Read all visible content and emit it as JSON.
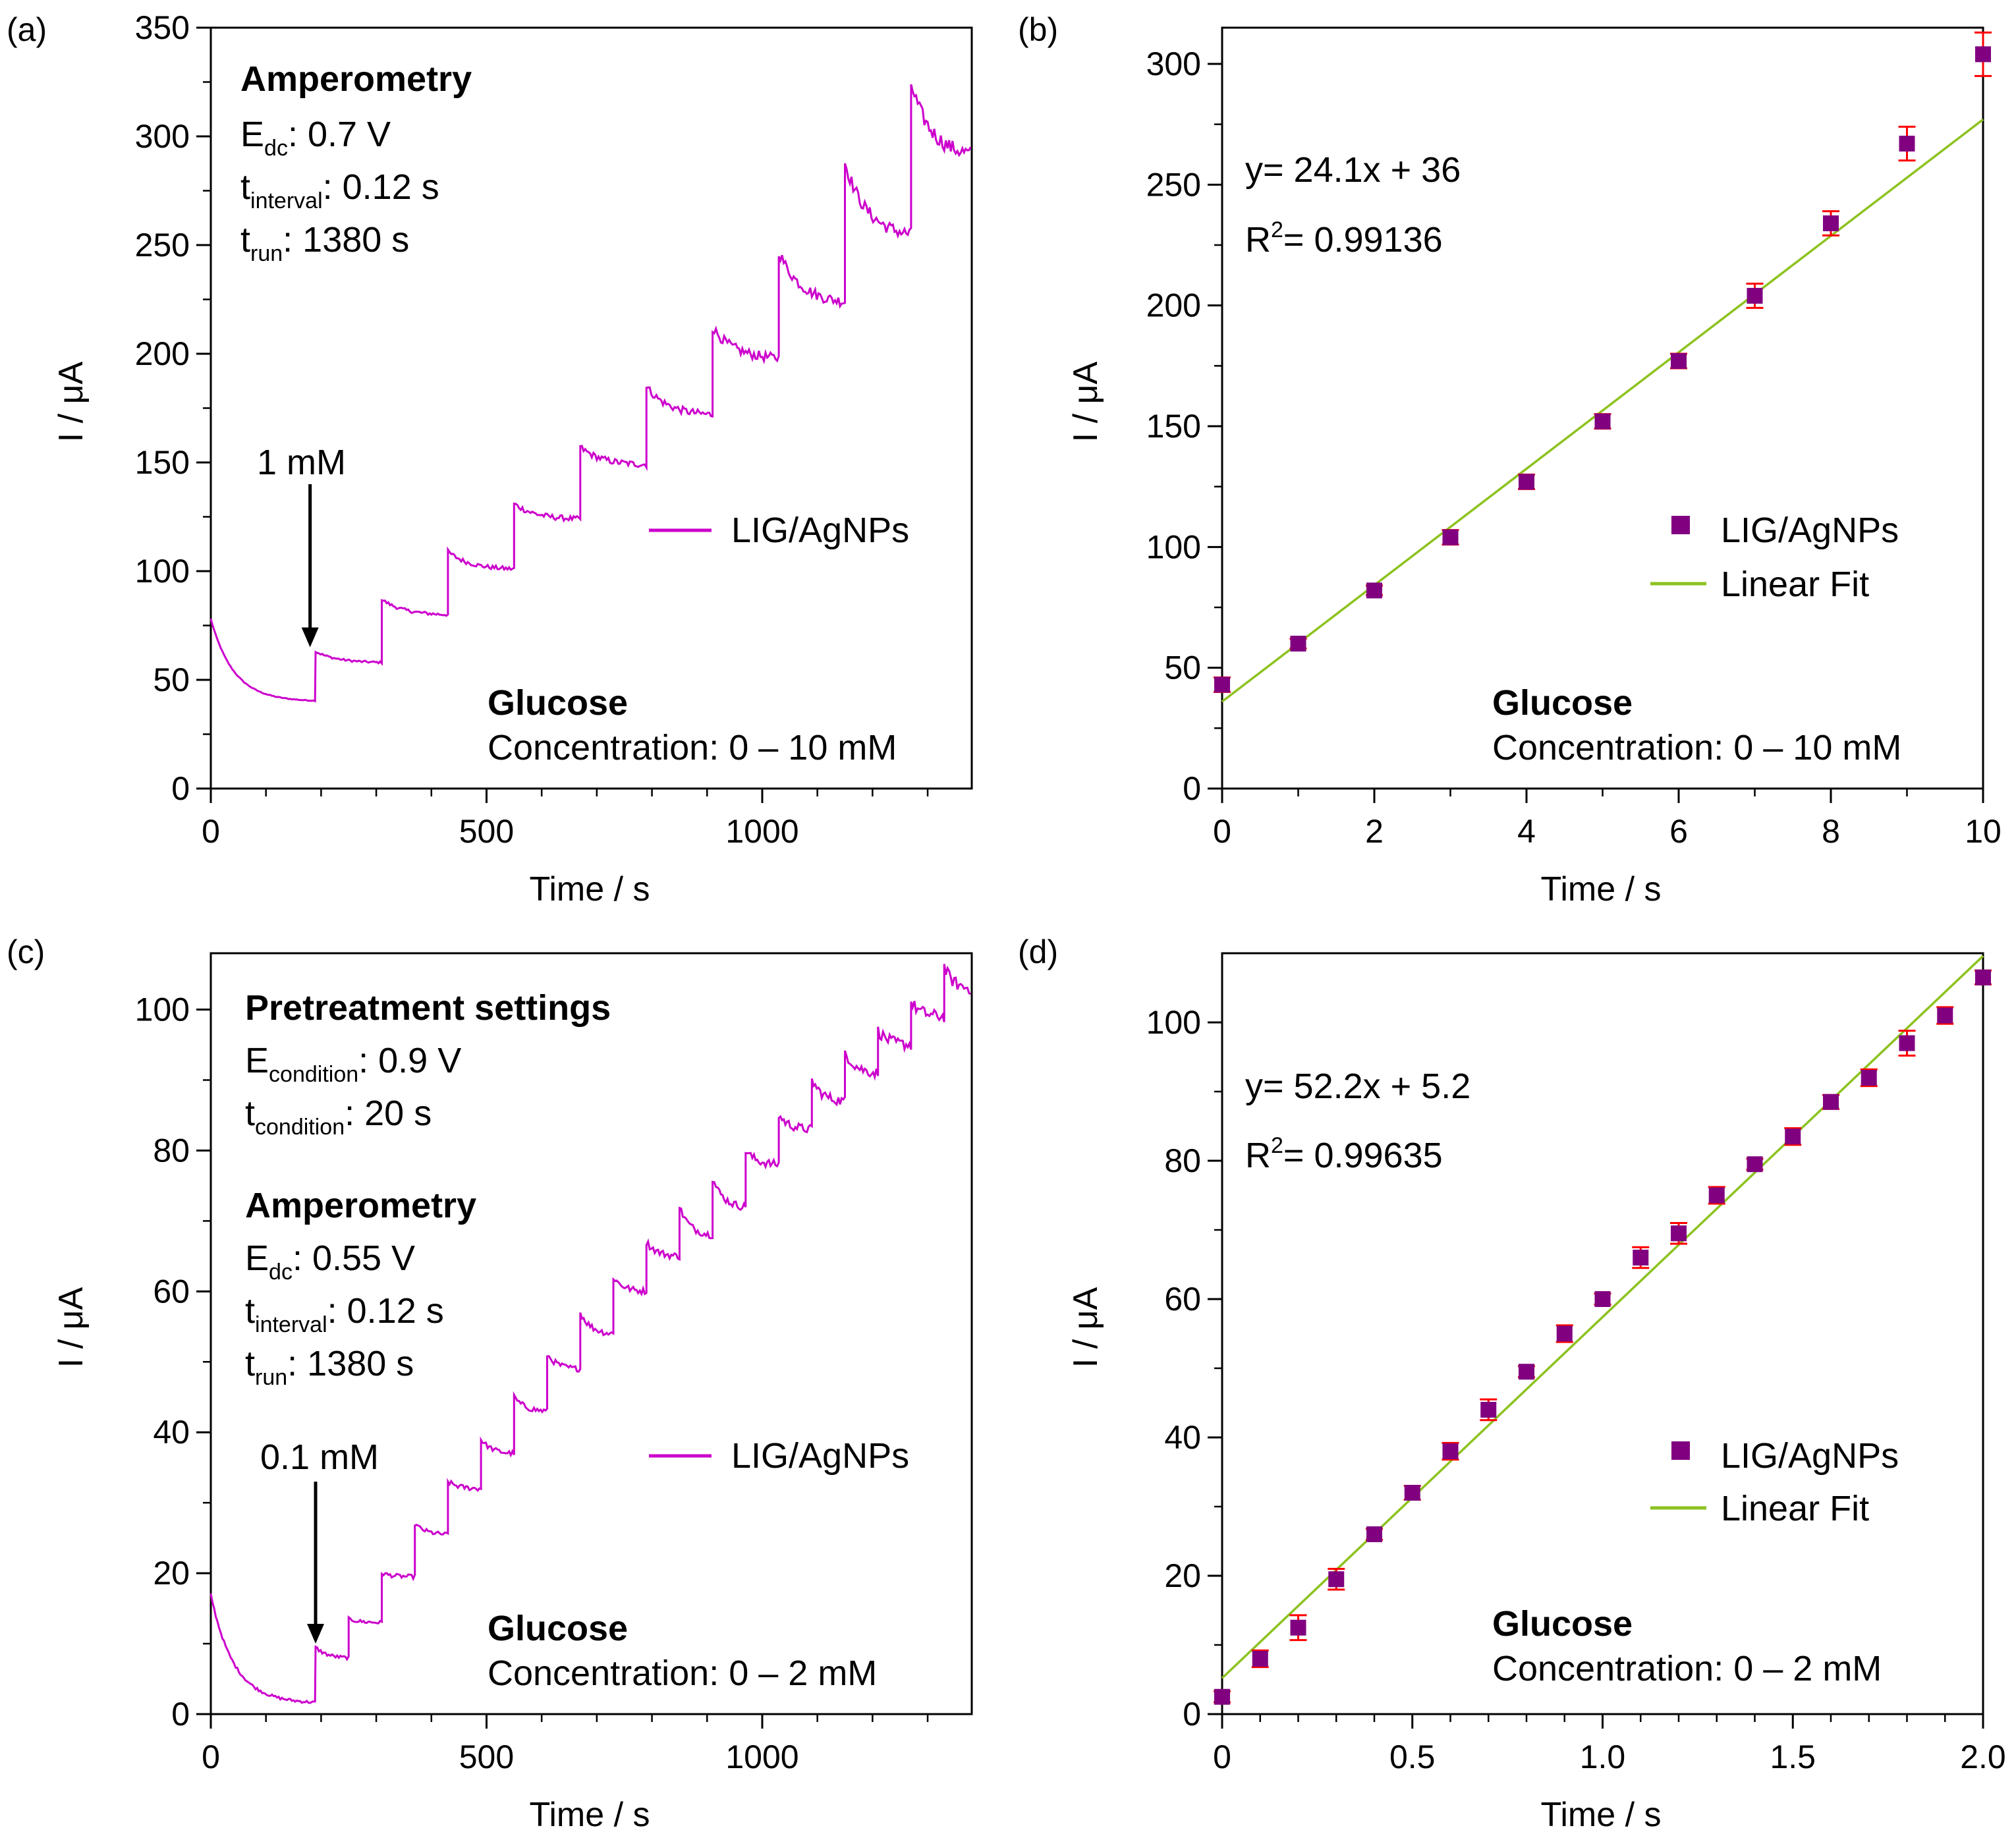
{
  "colors": {
    "trace": "#cc00cc",
    "marker": "#800080",
    "errorbar": "#ff0000",
    "fit": "#8dc21f",
    "axis": "#000000"
  },
  "chart_data": [
    {
      "id": "a",
      "type": "line",
      "panel_label": "(a)",
      "xlabel": "Time / s",
      "ylabel": "I / μA",
      "xlim": [
        0,
        1380
      ],
      "ylim": [
        0,
        350
      ],
      "xticks": [
        0,
        500,
        1000
      ],
      "xminor": [
        100,
        200,
        300,
        400,
        600,
        700,
        800,
        900,
        1100,
        1200,
        1300
      ],
      "yticks": [
        0,
        50,
        100,
        150,
        200,
        250,
        300,
        350
      ],
      "annotation": {
        "title": "Amperometry",
        "lines": [
          {
            "main": "E",
            "sub": "dc",
            "rest": ": 0.7 V"
          },
          {
            "main": "t",
            "sub": "interval",
            "rest": ": 0.12 s"
          },
          {
            "main": "t",
            "sub": "run",
            "rest": ": 1380 s"
          }
        ]
      },
      "arrow": {
        "text": "1 mM",
        "x": 180,
        "y_tip": 65,
        "y_tail": 140
      },
      "legend": [
        {
          "label": "LIG/AgNPs",
          "kind": "line"
        }
      ],
      "footer": {
        "title": "Glucose",
        "text": "Concentration: 0 – 10 mM"
      },
      "series": [
        {
          "name": "LIG/AgNPs",
          "start_value": 78,
          "pre_step_value": 40,
          "step_start_time": 190,
          "step_interval": 120,
          "noise": [
            1,
            1.5,
            2,
            2.5,
            3,
            3.5,
            4.5,
            5,
            6,
            7
          ],
          "steps": [
            {
              "peak": 63,
              "end": 58
            },
            {
              "peak": 87,
              "end": 80
            },
            {
              "peak": 109,
              "end": 101
            },
            {
              "peak": 131,
              "end": 124
            },
            {
              "peak": 157,
              "end": 149
            },
            {
              "peak": 185,
              "end": 172
            },
            {
              "peak": 212,
              "end": 198
            },
            {
              "peak": 247,
              "end": 224
            },
            {
              "peak": 288,
              "end": 255
            },
            {
              "peak": 324,
              "end": 292
            }
          ]
        }
      ]
    },
    {
      "id": "b",
      "type": "scatter",
      "panel_label": "(b)",
      "xlabel": "Time / s",
      "ylabel": "I / μA",
      "xlim": [
        0,
        10
      ],
      "ylim": [
        0,
        315
      ],
      "xticks": [
        0,
        2,
        4,
        6,
        8,
        10
      ],
      "xminor": [
        1,
        3,
        5,
        7,
        9
      ],
      "yticks": [
        0,
        50,
        100,
        150,
        200,
        250,
        300
      ],
      "equation": "y= 24.1x + 36",
      "r2_prefix": "R",
      "r2_sup": "2",
      "r2_rest": "= 0.99136",
      "legend": [
        {
          "label": "LIG/AgNPs",
          "kind": "marker"
        },
        {
          "label": "Linear Fit",
          "kind": "line"
        }
      ],
      "footer": {
        "title": "Glucose",
        "text": "Concentration: 0 – 10 mM"
      },
      "fit": {
        "slope": 24.1,
        "intercept": 36
      },
      "series": [
        {
          "name": "LIG/AgNPs",
          "x": [
            0,
            1,
            2,
            3,
            4,
            5,
            6,
            7,
            8,
            9,
            10
          ],
          "y": [
            43,
            60,
            82,
            104,
            127,
            152,
            177,
            204,
            234,
            267,
            304
          ],
          "err": [
            3,
            2,
            2,
            3,
            3,
            3,
            3,
            5,
            5,
            7,
            9
          ]
        }
      ]
    },
    {
      "id": "c",
      "type": "line",
      "panel_label": "(c)",
      "xlabel": "Time / s",
      "ylabel": "I / μA",
      "xlim": [
        0,
        1380
      ],
      "ylim": [
        0,
        108
      ],
      "xticks": [
        0,
        500,
        1000
      ],
      "xminor": [
        100,
        200,
        300,
        400,
        600,
        700,
        800,
        900,
        1100,
        1200,
        1300
      ],
      "yticks": [
        0,
        20,
        40,
        60,
        80,
        100
      ],
      "annotation": {
        "title": "Pretreatment settings",
        "lines": [
          {
            "main": "E",
            "sub": "condition",
            "rest": ": 0.9 V"
          },
          {
            "main": "t",
            "sub": "condition",
            "rest": ": 20 s"
          }
        ],
        "title2": "Amperometry",
        "lines2": [
          {
            "main": "E",
            "sub": "dc",
            "rest": ": 0.55 V"
          },
          {
            "main": "t",
            "sub": "interval",
            "rest": ": 0.12 s"
          },
          {
            "main": "t",
            "sub": "run",
            "rest": ": 1380 s"
          }
        ]
      },
      "arrow": {
        "text": "0.1 mM",
        "x": 190,
        "y_tip": 10,
        "y_tail": 33
      },
      "legend": [
        {
          "label": "LIG/AgNPs",
          "kind": "line"
        }
      ],
      "footer": {
        "title": "Glucose",
        "text": "Concentration: 0 – 2 mM"
      },
      "series": [
        {
          "name": "LIG/AgNPs",
          "start_value": 17,
          "pre_step_value": 1.5,
          "step_start_time": 190,
          "step_interval": 60,
          "noise": [
            0.5,
            0.5,
            0.6,
            0.6,
            0.7,
            0.7,
            0.8,
            0.8,
            0.9,
            0.9,
            1,
            1,
            1.1,
            1.2,
            1.3,
            1.4,
            1.5,
            1.6,
            1.7,
            1.8
          ],
          "steps": [
            {
              "peak": 9.5,
              "end": 8
            },
            {
              "peak": 13.5,
              "end": 13
            },
            {
              "peak": 20,
              "end": 19.5
            },
            {
              "peak": 27,
              "end": 25.5
            },
            {
              "peak": 33,
              "end": 32
            },
            {
              "peak": 39,
              "end": 37
            },
            {
              "peak": 45,
              "end": 43
            },
            {
              "peak": 51,
              "end": 49
            },
            {
              "peak": 57,
              "end": 54
            },
            {
              "peak": 62,
              "end": 60
            },
            {
              "peak": 67,
              "end": 65
            },
            {
              "peak": 72,
              "end": 68
            },
            {
              "peak": 76,
              "end": 72
            },
            {
              "peak": 80,
              "end": 78
            },
            {
              "peak": 85,
              "end": 83
            },
            {
              "peak": 90,
              "end": 87
            },
            {
              "peak": 94,
              "end": 91
            },
            {
              "peak": 97,
              "end": 95
            },
            {
              "peak": 101,
              "end": 99
            },
            {
              "peak": 106,
              "end": 103
            }
          ]
        }
      ]
    },
    {
      "id": "d",
      "type": "scatter",
      "panel_label": "(d)",
      "xlabel": "Time / s",
      "ylabel": "I / μA",
      "xlim": [
        0,
        2
      ],
      "ylim": [
        0,
        110
      ],
      "xticks": [
        0,
        0.5,
        1.0,
        1.5,
        2.0
      ],
      "xtick_labels": [
        "0",
        "0.5",
        "1.0",
        "1.5",
        "2.0"
      ],
      "xminor": [
        0.1,
        0.2,
        0.3,
        0.4,
        0.6,
        0.7,
        0.8,
        0.9,
        1.1,
        1.2,
        1.3,
        1.4,
        1.6,
        1.7,
        1.8,
        1.9
      ],
      "yticks": [
        0,
        20,
        40,
        60,
        80,
        100
      ],
      "equation": "y= 52.2x + 5.2",
      "r2_prefix": "R",
      "r2_sup": "2",
      "r2_rest": "= 0.99635",
      "legend": [
        {
          "label": "LIG/AgNPs",
          "kind": "marker"
        },
        {
          "label": "Linear Fit",
          "kind": "line"
        }
      ],
      "footer": {
        "title": "Glucose",
        "text": "Concentration: 0 – 2 mM"
      },
      "fit": {
        "slope": 52.2,
        "intercept": 5.2
      },
      "series": [
        {
          "name": "LIG/AgNPs",
          "x": [
            0,
            0.1,
            0.2,
            0.3,
            0.4,
            0.5,
            0.6,
            0.7,
            0.8,
            0.9,
            1.0,
            1.1,
            1.2,
            1.3,
            1.4,
            1.5,
            1.6,
            1.7,
            1.8,
            1.9,
            2.0
          ],
          "y": [
            2.5,
            8,
            12.5,
            19.5,
            26,
            32,
            38,
            44,
            49.5,
            55,
            60,
            66,
            69.5,
            75,
            79.5,
            83.5,
            88.5,
            92,
            97,
            101,
            106.5
          ],
          "err": [
            0.8,
            1.2,
            1.8,
            1.5,
            0.8,
            1,
            1.2,
            1.5,
            0.8,
            1.2,
            0.8,
            1.5,
            1.5,
            1.2,
            0.8,
            1.2,
            1,
            1.2,
            1.8,
            1.2,
            1
          ]
        }
      ]
    }
  ]
}
